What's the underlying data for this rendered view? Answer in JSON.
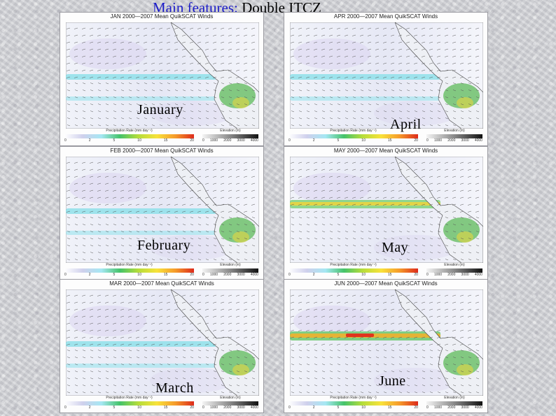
{
  "title": {
    "lead": "Main features:",
    "rest": "Double ITCZ"
  },
  "colorbar": {
    "precip_label": "Precipitation Rate (mm day⁻¹)",
    "elev_label": "Elevation (m)",
    "precip_ticks": [
      "0",
      "2",
      "5",
      "10",
      "15",
      "20"
    ],
    "elev_ticks": [
      "0",
      "1000",
      "2000",
      "3000",
      "4000"
    ]
  },
  "panels": [
    {
      "name": "jan",
      "header": "JAN 2000—2007 Mean QuikSCAT Winds",
      "month": "January",
      "itcz": "double"
    },
    {
      "name": "apr",
      "header": "APR 2000—2007 Mean QuikSCAT Winds",
      "month": "April",
      "itcz": "double"
    },
    {
      "name": "feb",
      "header": "FEB 2000—2007 Mean QuikSCAT Winds",
      "month": "February",
      "itcz": "double"
    },
    {
      "name": "may",
      "header": "MAY 2000—2007 Mean QuikSCAT Winds",
      "month": "May",
      "itcz": "single"
    },
    {
      "name": "mar",
      "header": "MAR 2000—2007 Mean QuikSCAT Winds",
      "month": "March",
      "itcz": "double"
    },
    {
      "name": "jun",
      "header": "JUN 2000—2007 Mean QuikSCAT Winds",
      "month": "June",
      "itcz": "single-strong"
    }
  ]
}
